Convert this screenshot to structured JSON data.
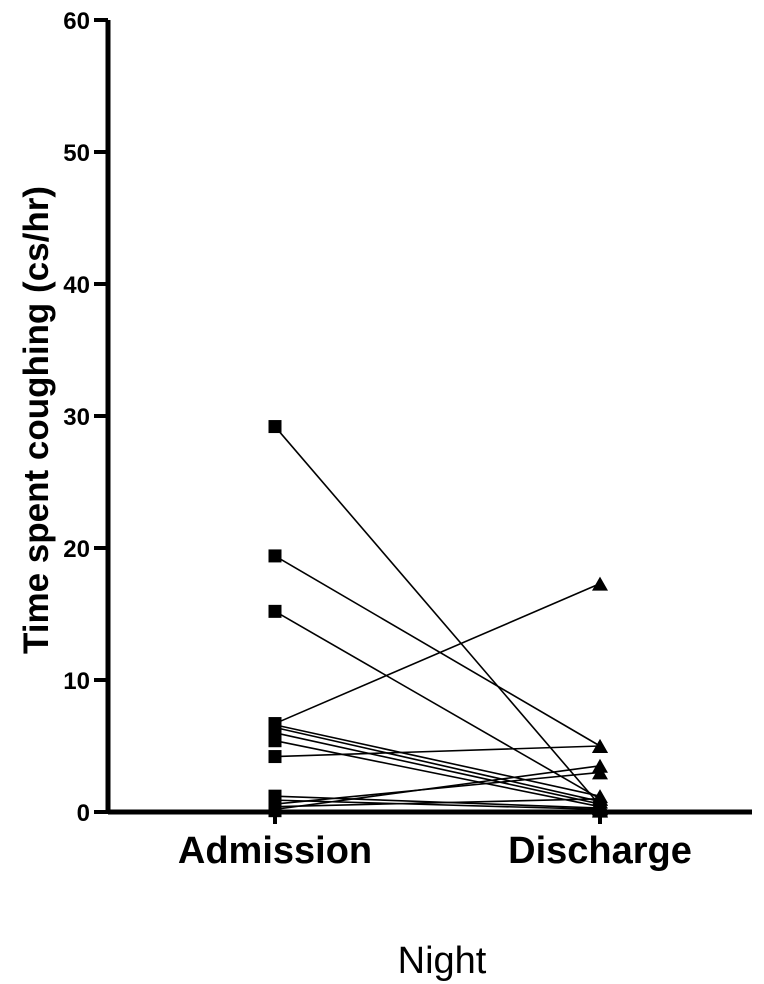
{
  "chart_data": {
    "type": "line",
    "title": "",
    "xlabel": "Night",
    "ylabel": "Time spent coughing (cs/hr)",
    "categories": [
      "Admission",
      "Discharge"
    ],
    "ylim": [
      0,
      60
    ],
    "yticks": [
      0,
      10,
      20,
      30,
      40,
      50,
      60
    ],
    "markers": {
      "Admission": "square",
      "Discharge": "triangle"
    },
    "grid": false,
    "legend": "none",
    "pairs": [
      [
        29.2,
        0.5
      ],
      [
        19.4,
        5.0
      ],
      [
        15.2,
        1.0
      ],
      [
        6.7,
        17.3
      ],
      [
        6.6,
        1.2
      ],
      [
        6.4,
        0.8
      ],
      [
        6.0,
        0.6
      ],
      [
        5.4,
        0.4
      ],
      [
        4.2,
        5.0
      ],
      [
        1.2,
        0.3
      ],
      [
        0.9,
        0.2
      ],
      [
        0.6,
        3.0
      ],
      [
        0.4,
        1.0
      ],
      [
        0.2,
        3.5
      ],
      [
        0.1,
        0.1
      ]
    ]
  }
}
